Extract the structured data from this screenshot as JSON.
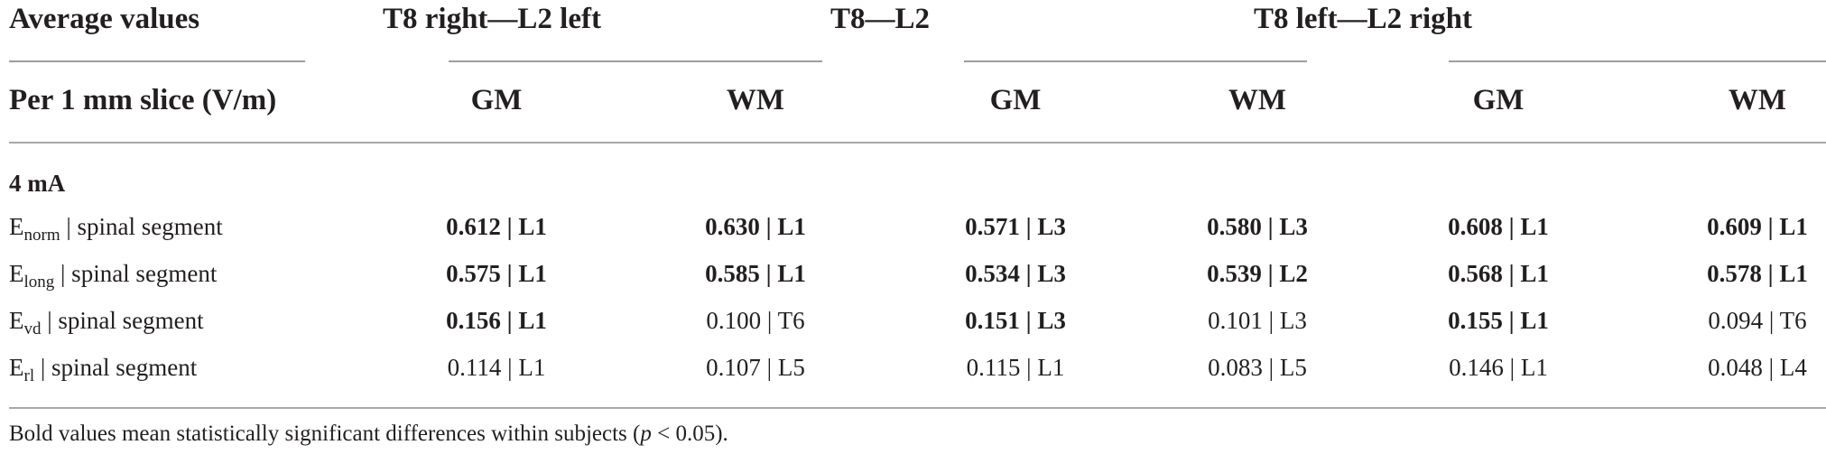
{
  "header": {
    "col0_top": "Average values",
    "col0_bottom": "Per 1 mm slice (V/m)",
    "groups": [
      "T8 right—L2 left",
      "T8—L2",
      "T8 left—L2 right"
    ],
    "sub": {
      "gm": "GM",
      "wm": "WM"
    }
  },
  "section": "4 mA",
  "row_suffix": " | spinal segment",
  "rows": [
    {
      "E": "E",
      "sub": "norm",
      "cells": [
        {
          "text": "0.612 | L1",
          "bold": true
        },
        {
          "text": "0.630 | L1",
          "bold": true
        },
        {
          "text": "0.571 | L3",
          "bold": true
        },
        {
          "text": "0.580 | L3",
          "bold": true
        },
        {
          "text": "0.608 | L1",
          "bold": true
        },
        {
          "text": "0.609 | L1",
          "bold": true
        }
      ]
    },
    {
      "E": "E",
      "sub": "long",
      "cells": [
        {
          "text": "0.575 | L1",
          "bold": true
        },
        {
          "text": "0.585 | L1",
          "bold": true
        },
        {
          "text": "0.534 | L3",
          "bold": true
        },
        {
          "text": "0.539 | L2",
          "bold": true
        },
        {
          "text": "0.568 | L1",
          "bold": true
        },
        {
          "text": "0.578 | L1",
          "bold": true
        }
      ]
    },
    {
      "E": "E",
      "sub": "vd",
      "cells": [
        {
          "text": "0.156 | L1",
          "bold": true
        },
        {
          "text": "0.100 | T6",
          "bold": false
        },
        {
          "text": "0.151 | L3",
          "bold": true
        },
        {
          "text": "0.101 | L3",
          "bold": false
        },
        {
          "text": "0.155 | L1",
          "bold": true
        },
        {
          "text": "0.094 | T6",
          "bold": false
        }
      ]
    },
    {
      "E": "E",
      "sub": "rl",
      "cells": [
        {
          "text": "0.114 | L1",
          "bold": false
        },
        {
          "text": "0.107 | L5",
          "bold": false
        },
        {
          "text": "0.115 | L1",
          "bold": false
        },
        {
          "text": "0.083 | L5",
          "bold": false
        },
        {
          "text": "0.146 | L1",
          "bold": false
        },
        {
          "text": "0.048 | L4",
          "bold": false
        }
      ]
    }
  ],
  "footnote": {
    "text": "Bold values mean statistically significant differences within subjects (",
    "p": "p",
    "rest": " < 0.05)."
  }
}
